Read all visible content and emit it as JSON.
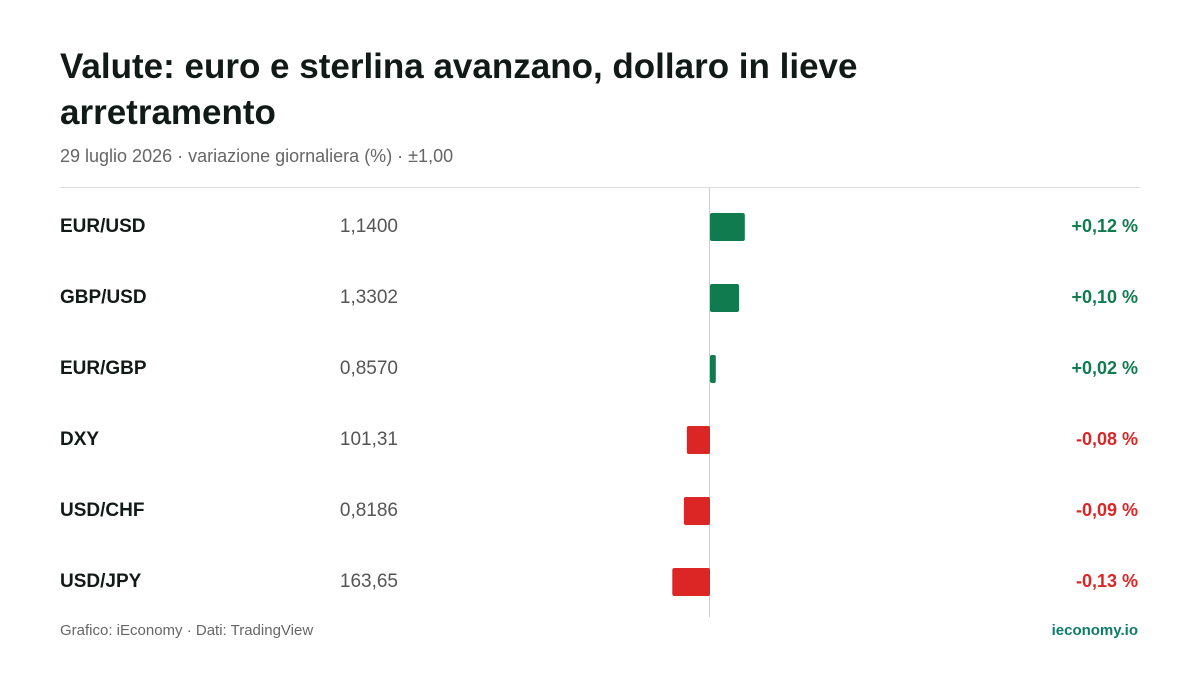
{
  "chart_data": {
    "type": "diverging-bar",
    "title": "Valute: euro e sterlina avanzano, dollaro in lieve arretramento",
    "subtitle": "29 luglio 2026 · variazione giornaliera (%) · ±1,00",
    "categories": [
      "EUR/USD",
      "GBP/USD",
      "EUR/GBP",
      "DXY",
      "USD/CHF",
      "USD/JPY"
    ],
    "prices": [
      "1,1400",
      "1,3302",
      "0,8570",
      "101,31",
      "0,8186",
      "163,65"
    ],
    "values": [
      0.12,
      0.1,
      0.02,
      -0.08,
      -0.09,
      -0.13
    ],
    "value_labels": [
      "+0,12 %",
      "+0,10 %",
      "+0,02 %",
      "-0,08 %",
      "-0,09 %",
      "-0,13 %"
    ],
    "xlim": [
      -1,
      1
    ],
    "positive_color": "#0f7b4f",
    "negative_color": "#dc2626",
    "source": "Grafico: iEconomy · Dati: TradingView",
    "brand": "ieconomy.io"
  }
}
